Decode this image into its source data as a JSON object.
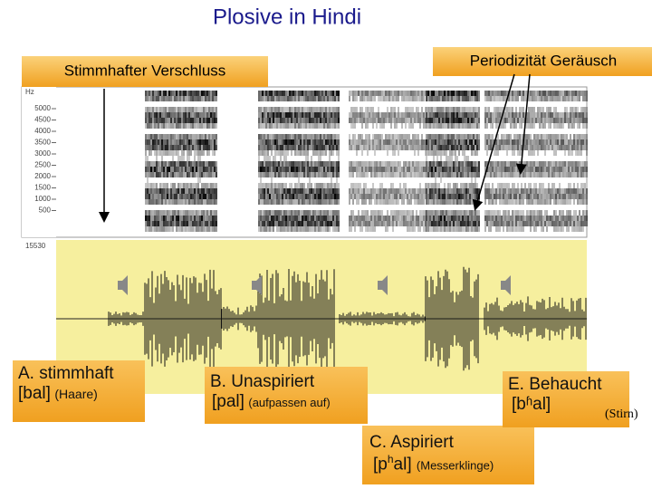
{
  "title": "Plosive in  Hindi",
  "callouts": [
    "Stimmhafter Verschluss",
    "Periodizität Geräusch"
  ],
  "spectrogram": {
    "unit": "Hz",
    "ticks": [
      "5000",
      "4500",
      "4000",
      "3500",
      "3000",
      "2500",
      "2000",
      "1500",
      "1000",
      "500"
    ]
  },
  "waveform": {
    "label": "15530"
  },
  "examples": [
    {
      "name": "A. stimmhaft",
      "transcription": "[bal]",
      "gloss": "(Haare)"
    },
    {
      "name": "B. Unaspiriert",
      "transcription": "[pal]",
      "gloss": "(aufpassen auf)"
    },
    {
      "name": "C. Aspiriert",
      "transcription_parts": [
        "[p",
        "h",
        "al]"
      ],
      "gloss": "(Messerklinge)"
    },
    {
      "name": "E. Behaucht",
      "transcription": "[bʱal]",
      "gloss": "(Stirn)"
    }
  ]
}
